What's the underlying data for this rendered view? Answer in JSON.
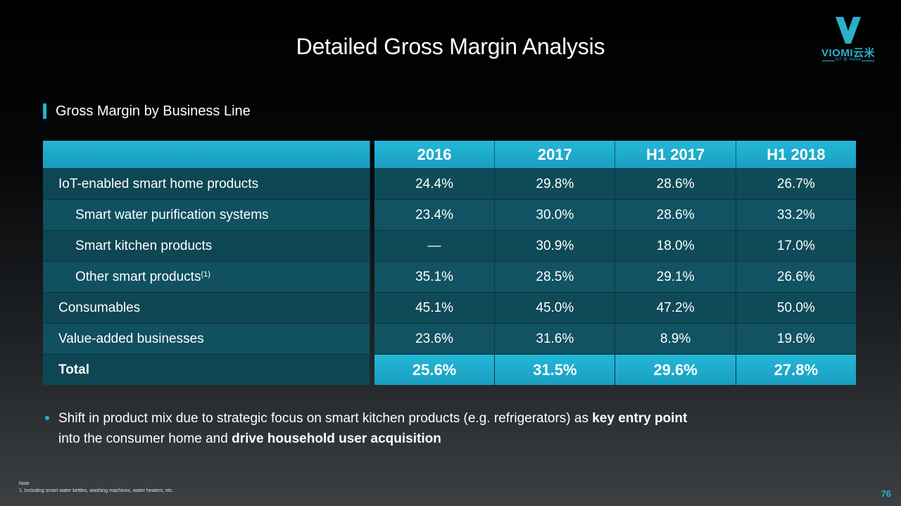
{
  "slide": {
    "title": "Detailed Gross Margin Analysis",
    "section_heading": "Gross Margin by Business Line",
    "page_number": "76"
  },
  "logo": {
    "brand": "VIOMI云米",
    "tagline": "IoT @ Home",
    "color": "#2bb0cc"
  },
  "table": {
    "columns": [
      "2016",
      "2017",
      "H1 2017",
      "H1 2018"
    ],
    "rows": [
      {
        "label": "IoT-enabled smart home products",
        "values": [
          "24.4%",
          "29.8%",
          "28.6%",
          "26.7%"
        ]
      },
      {
        "label": "Smart water purification systems",
        "values": [
          "23.4%",
          "30.0%",
          "28.6%",
          "33.2%"
        ]
      },
      {
        "label": "Smart kitchen products",
        "values": [
          "—",
          "30.9%",
          "18.0%",
          "17.0%"
        ]
      },
      {
        "label": "Other smart products",
        "footnote": "(1)",
        "values": [
          "35.1%",
          "28.5%",
          "29.1%",
          "26.6%"
        ]
      },
      {
        "label": "Consumables",
        "values": [
          "45.1%",
          "45.0%",
          "47.2%",
          "50.0%"
        ]
      },
      {
        "label": "Value-added businesses",
        "values": [
          "23.6%",
          "31.6%",
          "8.9%",
          "19.6%"
        ]
      }
    ],
    "total": {
      "label": "Total",
      "values": [
        "25.6%",
        "31.5%",
        "29.6%",
        "27.8%"
      ]
    }
  },
  "bullet": {
    "part1": "Shift in product mix due to strategic focus on smart kitchen products (e.g. refrigerators) as ",
    "bold1": "key entry point",
    "part2": " into the consumer home and ",
    "bold2": "drive household user acquisition"
  },
  "note": {
    "heading": "Note",
    "line1": "1. Including smart water kettles, washing machines, water heaters, etc."
  },
  "colors": {
    "accent": "#1fb3d3",
    "table_header": "#23b8d8",
    "table_body": "#0f4a58"
  }
}
